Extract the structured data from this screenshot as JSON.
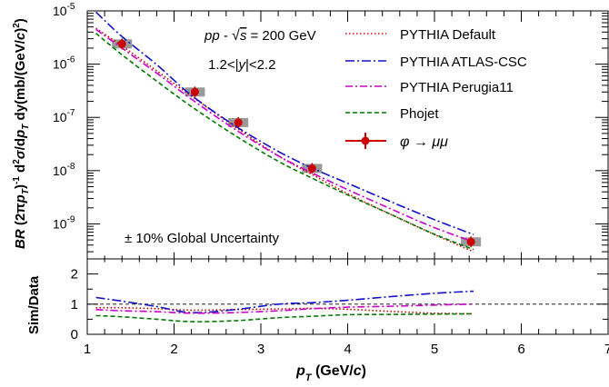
{
  "chart_data": [
    {
      "type": "line",
      "panel": "top",
      "ylabel": "BR (2πp_T)^-1 d²σ/dp_T dy (mb/(GeV/c)²)",
      "ylabel_parts": {
        "br": "BR",
        "mid1": " (2",
        "pi": "π",
        "p": "p",
        "t": "T",
        "mid2": ")",
        "exp1": "-1",
        "d1": " d",
        "exp2": "2",
        "sigma": "σ",
        "slash": "/d",
        "p2": "p",
        "t2": "T",
        "dy": " dy",
        "tail": "(mb/(GeV/",
        "c": "c",
        "tail2": ")",
        "exp3": "2",
        "tail3": ")"
      },
      "yscale": "log",
      "ylim": [
        2.2e-10,
        1e-05
      ],
      "xlim": [
        1,
        7
      ],
      "y_tick_labels": [
        {
          "base": "10",
          "exp": "-9"
        },
        {
          "base": "10",
          "exp": "-8"
        },
        {
          "base": "10",
          "exp": "-7"
        },
        {
          "base": "10",
          "exp": "-6"
        },
        {
          "base": "10",
          "exp": "-5"
        }
      ],
      "y_tick_values": [
        1e-09,
        1e-08,
        1e-07,
        1e-06,
        1e-05
      ],
      "annotations": {
        "energy_pp": "pp",
        "energy_dash": " - ",
        "energy_s": "s",
        "energy_value": " = 200 GeV",
        "rapidity_left": "1.2<|",
        "rapidity_y": "y",
        "rapidity_right": "|<2.2",
        "uncertainty": "±  10% Global Uncertainty"
      },
      "legend_position": "top-right",
      "series": [
        {
          "name": "PYTHIA Default",
          "color": "#cc0000",
          "style": "dotted",
          "x": [
            1.1,
            1.4,
            1.8,
            2.2,
            2.7,
            3.2,
            3.6,
            4.0,
            4.5,
            5.0,
            5.45
          ],
          "y": [
            4.7e-06,
            2.2e-06,
            7.5e-07,
            2.5e-07,
            6.7e-08,
            1.9e-08,
            8.3e-09,
            3.7e-09,
            1.5e-09,
            6.3e-10,
            3e-10
          ]
        },
        {
          "name": "PYTHIA ATLAS-CSC",
          "color": "#1010cc",
          "style": "dashdot",
          "x": [
            1.1,
            1.4,
            1.8,
            2.2,
            2.7,
            3.2,
            3.6,
            4.0,
            4.5,
            5.0,
            5.45
          ],
          "y": [
            9.5e-06,
            3.3e-06,
            9.8e-07,
            2.6e-07,
            7e-08,
            2.3e-08,
            1.1e-08,
            5.8e-09,
            2.6e-09,
            1.2e-09,
            6.3e-10
          ]
        },
        {
          "name": "PYTHIA Perugia11",
          "color": "#cc00cc",
          "style": "dashdot",
          "x": [
            1.1,
            1.4,
            1.8,
            2.2,
            2.7,
            3.2,
            3.6,
            4.0,
            4.5,
            5.0,
            5.45
          ],
          "y": [
            4.5e-06,
            2e-06,
            6.8e-07,
            2.2e-07,
            6e-08,
            1.9e-08,
            8.9e-09,
            4.4e-09,
            1.9e-09,
            8.5e-10,
            4.6e-10
          ]
        },
        {
          "name": "Phojet",
          "color": "#007a00",
          "style": "dashed",
          "x": [
            1.1,
            1.4,
            1.8,
            2.2,
            2.7,
            3.2,
            3.6,
            4.0,
            4.5,
            5.0,
            5.45
          ],
          "y": [
            3.8e-06,
            1.5e-06,
            4.8e-07,
            1.6e-07,
            4.6e-08,
            1.5e-08,
            7.1e-09,
            3.5e-09,
            1.5e-09,
            6.4e-10,
            3.3e-10
          ]
        }
      ],
      "data_points": {
        "name_parts": {
          "phi": "φ",
          "arrow": " → ",
          "mu": "μμ"
        },
        "color": "#cc0000",
        "x": [
          1.4,
          2.24,
          2.74,
          3.59,
          5.42
        ],
        "y": [
          2.4e-06,
          3e-07,
          8e-08,
          1.1e-08,
          4.6e-10
        ],
        "sys_box_color": "#9a9a9a"
      }
    },
    {
      "type": "line",
      "panel": "bottom",
      "xlabel_parts": {
        "p": "p",
        "t": "T",
        "tail": " (GeV/",
        "c": "c",
        "tail2": ")"
      },
      "ylabel": "Sim/Data",
      "xlim": [
        1,
        7
      ],
      "ylim": [
        0,
        2.5
      ],
      "x_tick_labels": [
        "1",
        "2",
        "3",
        "4",
        "5",
        "6",
        "7"
      ],
      "x_tick_values": [
        1,
        2,
        3,
        4,
        5,
        6,
        7
      ],
      "y_tick_labels": [
        "0",
        "1",
        "2"
      ],
      "y_tick_values": [
        0,
        1,
        2
      ],
      "reference_line": 1,
      "series": [
        {
          "name": "PYTHIA Default",
          "color": "#cc0000",
          "style": "dotted",
          "x": [
            1.1,
            1.4,
            1.8,
            2.2,
            2.7,
            3.2,
            3.6,
            4.0,
            4.5,
            5.0,
            5.45
          ],
          "y": [
            0.88,
            0.88,
            0.85,
            0.8,
            0.82,
            0.84,
            0.86,
            0.83,
            0.76,
            0.7,
            0.68
          ]
        },
        {
          "name": "PYTHIA ATLAS-CSC",
          "color": "#1010cc",
          "style": "dashdot",
          "x": [
            1.1,
            1.4,
            1.8,
            2.2,
            2.7,
            3.2,
            3.6,
            4.0,
            4.5,
            5.0,
            5.45
          ],
          "y": [
            1.22,
            1.1,
            0.92,
            0.72,
            0.82,
            1.0,
            1.05,
            1.13,
            1.25,
            1.36,
            1.43
          ]
        },
        {
          "name": "PYTHIA Perugia11",
          "color": "#cc00cc",
          "style": "dashdot",
          "x": [
            1.1,
            1.4,
            1.8,
            2.2,
            2.7,
            3.2,
            3.6,
            4.0,
            4.5,
            5.0,
            5.45
          ],
          "y": [
            0.82,
            0.78,
            0.75,
            0.7,
            0.72,
            0.78,
            0.85,
            0.9,
            0.93,
            0.97,
            1.0
          ]
        },
        {
          "name": "Phojet",
          "color": "#007a00",
          "style": "dashed",
          "x": [
            1.1,
            1.4,
            1.8,
            2.2,
            2.7,
            3.2,
            3.6,
            4.0,
            4.5,
            5.0,
            5.45
          ],
          "y": [
            0.62,
            0.58,
            0.5,
            0.42,
            0.45,
            0.55,
            0.6,
            0.65,
            0.66,
            0.67,
            0.68
          ]
        }
      ]
    }
  ]
}
